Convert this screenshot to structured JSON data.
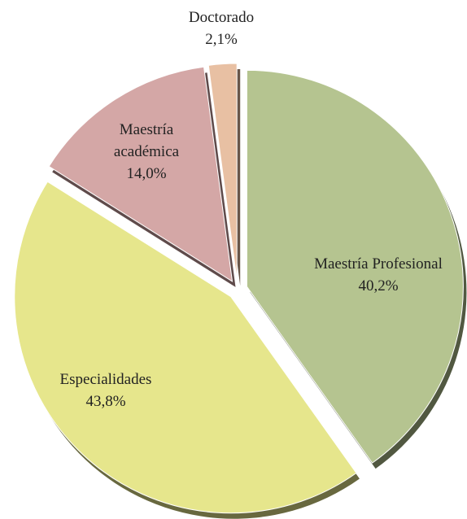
{
  "chart_data": {
    "type": "pie",
    "categories": [
      "Maestría Profesional",
      "Especialidades",
      "Maestría académica",
      "Doctorado"
    ],
    "values": [
      40.2,
      43.8,
      14.0,
      2.1
    ],
    "value_labels": [
      "40,2%",
      "43,8%",
      "14,0%",
      "2,1%"
    ],
    "colors": [
      "#b5c490",
      "#e6e68c",
      "#d4a7a6",
      "#e8c0a3"
    ]
  }
}
